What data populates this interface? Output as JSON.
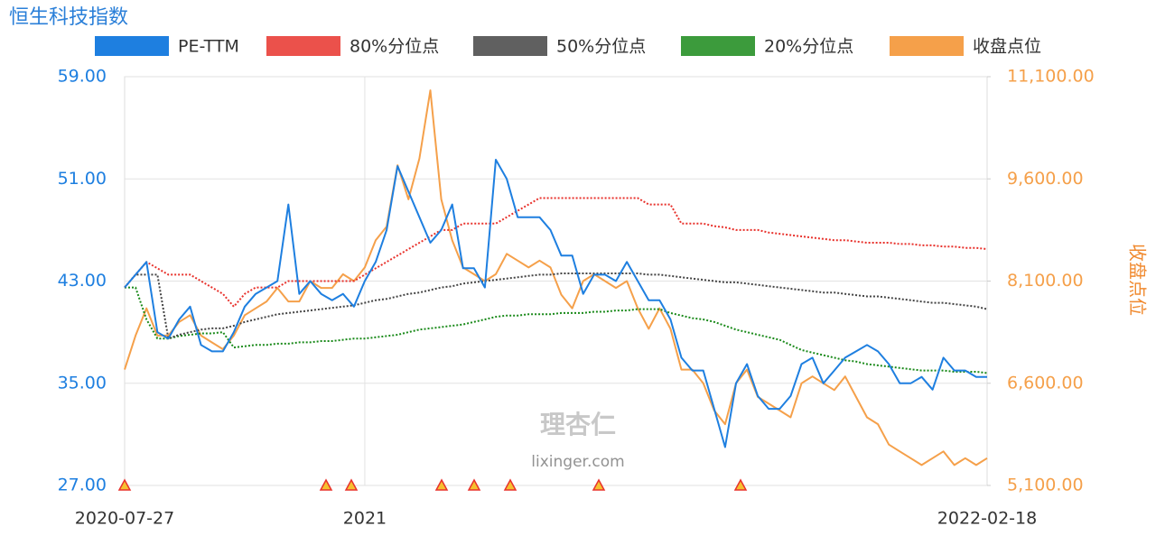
{
  "chart_data": {
    "type": "line",
    "title": "恒生科技指数",
    "y2_label": "收盘点位",
    "watermark": "理杏仁",
    "watermark_url": "lixinger.com",
    "categories": [
      "2020-07-27",
      null,
      null,
      null,
      null,
      null,
      null,
      null,
      null,
      null,
      null,
      null,
      null,
      null,
      null,
      null,
      null,
      null,
      null,
      null,
      null,
      null,
      "2021",
      null,
      null,
      null,
      null,
      null,
      null,
      null,
      null,
      null,
      null,
      null,
      null,
      null,
      null,
      null,
      null,
      null,
      null,
      null,
      null,
      null,
      null,
      null,
      null,
      null,
      null,
      null,
      null,
      null,
      null,
      null,
      null,
      null,
      null,
      null,
      null,
      null,
      null,
      null,
      null,
      null,
      null,
      null,
      null,
      null,
      null,
      null,
      null,
      null,
      null,
      null,
      null,
      null,
      null,
      null,
      null,
      "2022-02-18"
    ],
    "ylim": [
      27,
      59
    ],
    "yticks": [
      {
        "value": 27,
        "label": "27.00"
      },
      {
        "value": 35,
        "label": "35.00"
      },
      {
        "value": 43,
        "label": "43.00"
      },
      {
        "value": 51,
        "label": "51.00"
      },
      {
        "value": 59,
        "label": "59.00"
      }
    ],
    "y2lim": [
      5100,
      11100
    ],
    "y2ticks": [
      {
        "value": 5100,
        "label": "5,100.00"
      },
      {
        "value": 6600,
        "label": "6,600.00"
      },
      {
        "value": 8100,
        "label": "8,100.00"
      },
      {
        "value": 9600,
        "label": "9,600.00"
      },
      {
        "value": 11100,
        "label": "11,100.00"
      }
    ],
    "grid": true,
    "legend": "top",
    "series": [
      {
        "name": "PE-TTM",
        "color": "#1e7fe0",
        "dash": false,
        "values": [
          42.5,
          43.5,
          44.5,
          39,
          38.5,
          40,
          41,
          38,
          37.5,
          37.5,
          39,
          41,
          42,
          42.5,
          43,
          49,
          42,
          43,
          42,
          41.5,
          42,
          41,
          43,
          44.5,
          47,
          52,
          50,
          48,
          46,
          47,
          49,
          44,
          44,
          42.5,
          52.5,
          51,
          48,
          48,
          48,
          47,
          45,
          45,
          42,
          43.5,
          43.5,
          43,
          44.5,
          43,
          41.5,
          41.5,
          40,
          37,
          36,
          36,
          33,
          30,
          35,
          36.5,
          34,
          33,
          33,
          34,
          36.5,
          37,
          35,
          36,
          37,
          37.5,
          38,
          37.5,
          36.5,
          35,
          35,
          35.5,
          34.5,
          37,
          36,
          36,
          35.5,
          35.5
        ]
      },
      {
        "name": "80%分位点",
        "color": "#e8322c",
        "dash": true,
        "values": [
          42.5,
          43.5,
          44.5,
          44,
          43.5,
          43.5,
          43.5,
          43,
          42.5,
          42,
          41,
          42,
          42.5,
          42.5,
          42.5,
          43,
          43,
          43,
          43,
          43,
          43,
          43,
          43.5,
          44,
          44.5,
          45,
          45.5,
          46,
          46.5,
          47,
          47,
          47.5,
          47.5,
          47.5,
          47.5,
          48,
          48.5,
          49,
          49.5,
          49.5,
          49.5,
          49.5,
          49.5,
          49.5,
          49.5,
          49.5,
          49.5,
          49.5,
          49,
          49,
          49,
          47.5,
          47.5,
          47.5,
          47.3,
          47.2,
          47,
          47,
          47,
          46.8,
          46.7,
          46.6,
          46.5,
          46.4,
          46.3,
          46.2,
          46.2,
          46.1,
          46,
          46,
          46,
          45.9,
          45.9,
          45.8,
          45.8,
          45.7,
          45.7,
          45.6,
          45.6,
          45.5
        ]
      },
      {
        "name": "50%分位点",
        "color": "#444444",
        "dash": true,
        "values": [
          42.5,
          43.5,
          43.5,
          43.5,
          38.5,
          38.8,
          39,
          39.2,
          39.3,
          39.3,
          39.5,
          39.8,
          40,
          40.2,
          40.4,
          40.5,
          40.6,
          40.7,
          40.8,
          40.9,
          41,
          41.1,
          41.3,
          41.5,
          41.6,
          41.8,
          42,
          42.1,
          42.3,
          42.5,
          42.6,
          42.8,
          42.9,
          43,
          43.1,
          43.2,
          43.3,
          43.4,
          43.5,
          43.5,
          43.6,
          43.6,
          43.6,
          43.6,
          43.6,
          43.6,
          43.6,
          43.6,
          43.5,
          43.5,
          43.4,
          43.3,
          43.2,
          43.1,
          43,
          42.9,
          42.9,
          42.8,
          42.7,
          42.6,
          42.5,
          42.4,
          42.3,
          42.2,
          42.1,
          42.1,
          42,
          41.9,
          41.8,
          41.8,
          41.7,
          41.6,
          41.5,
          41.4,
          41.3,
          41.3,
          41.2,
          41.1,
          41,
          40.8
        ]
      },
      {
        "name": "20%分位点",
        "color": "#1a8a1a",
        "dash": true,
        "values": [
          42.5,
          42.5,
          40,
          38.5,
          38.5,
          38.7,
          38.8,
          38.9,
          38.9,
          39,
          37.8,
          37.9,
          38,
          38,
          38.1,
          38.1,
          38.2,
          38.2,
          38.3,
          38.3,
          38.4,
          38.5,
          38.5,
          38.6,
          38.7,
          38.8,
          39,
          39.2,
          39.3,
          39.4,
          39.5,
          39.6,
          39.8,
          40,
          40.2,
          40.3,
          40.3,
          40.4,
          40.4,
          40.4,
          40.5,
          40.5,
          40.5,
          40.6,
          40.6,
          40.7,
          40.7,
          40.8,
          40.8,
          40.8,
          40.5,
          40.3,
          40.1,
          40,
          39.8,
          39.5,
          39.2,
          39,
          38.8,
          38.6,
          38.4,
          38,
          37.6,
          37.4,
          37.2,
          37,
          36.8,
          36.7,
          36.5,
          36.4,
          36.3,
          36.2,
          36.1,
          36,
          36,
          36,
          35.9,
          35.9,
          35.9,
          35.8
        ]
      },
      {
        "name": "收盘点位",
        "color": "#f5a04a",
        "dash": false,
        "axis": "y2",
        "values": [
          6800,
          7300,
          7700,
          7300,
          7300,
          7500,
          7600,
          7300,
          7200,
          7100,
          7300,
          7600,
          7700,
          7800,
          8000,
          7800,
          7800,
          8100,
          8000,
          8000,
          8200,
          8100,
          8300,
          8700,
          8900,
          9800,
          9300,
          9900,
          10900,
          9300,
          8700,
          8300,
          8200,
          8100,
          8200,
          8500,
          8400,
          8300,
          8400,
          8300,
          7900,
          7700,
          8100,
          8200,
          8100,
          8000,
          8100,
          7700,
          7400,
          7700,
          7400,
          6800,
          6800,
          6600,
          6200,
          6000,
          6600,
          6800,
          6400,
          6300,
          6200,
          6100,
          6600,
          6700,
          6600,
          6500,
          6700,
          6400,
          6100,
          6000,
          5700,
          5600,
          5500,
          5400,
          5500,
          5600,
          5400,
          5500,
          5400,
          5500
        ]
      }
    ]
  }
}
